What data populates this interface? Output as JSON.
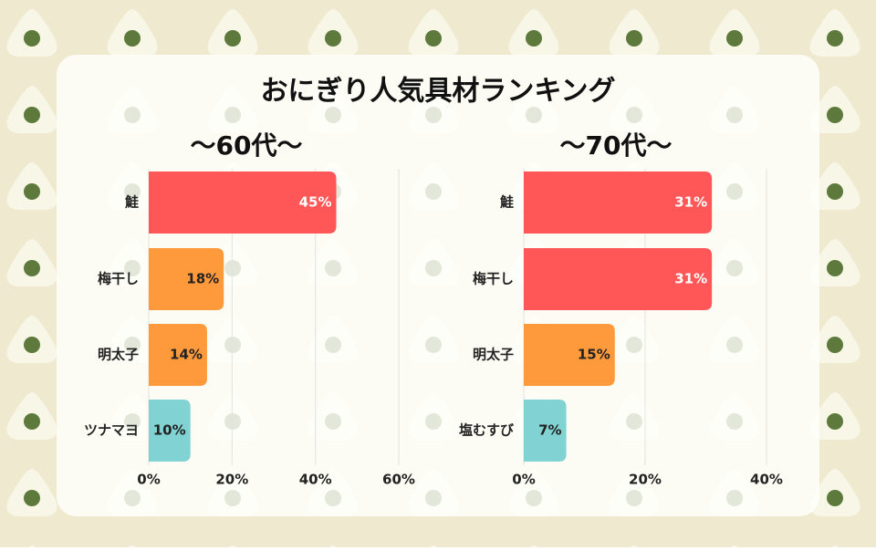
{
  "title": "おにぎり人気具材ランキング",
  "chart_data": [
    {
      "type": "hbar",
      "title": "～60代～",
      "categories": [
        "鮭",
        "梅干し",
        "明太子",
        "ツナマヨ"
      ],
      "values": [
        45,
        18,
        14,
        10
      ],
      "value_labels": [
        "45%",
        "18%",
        "14%",
        "10%"
      ],
      "colors": [
        "#ff5757",
        "#ff9a3c",
        "#ff9a3c",
        "#80d3d2"
      ],
      "xlim": [
        0,
        60
      ],
      "xticks": [
        {
          "value": 0,
          "label": "0%"
        },
        {
          "value": 20,
          "label": "20%"
        },
        {
          "value": 40,
          "label": "40%"
        },
        {
          "value": 60,
          "label": "60%"
        }
      ],
      "grid": true
    },
    {
      "type": "hbar",
      "title": "～70代～",
      "categories": [
        "鮭",
        "梅干し",
        "明太子",
        "塩むすび"
      ],
      "values": [
        31,
        31,
        15,
        7
      ],
      "value_labels": [
        "31%",
        "31%",
        "15%",
        "7%"
      ],
      "colors": [
        "#ff5757",
        "#ff5757",
        "#ff9a3c",
        "#80d3d2"
      ],
      "xlim": [
        0,
        40
      ],
      "xticks": [
        {
          "value": 0,
          "label": "0%"
        },
        {
          "value": 20,
          "label": "20%"
        },
        {
          "value": 40,
          "label": "40%"
        }
      ],
      "grid": true
    }
  ]
}
